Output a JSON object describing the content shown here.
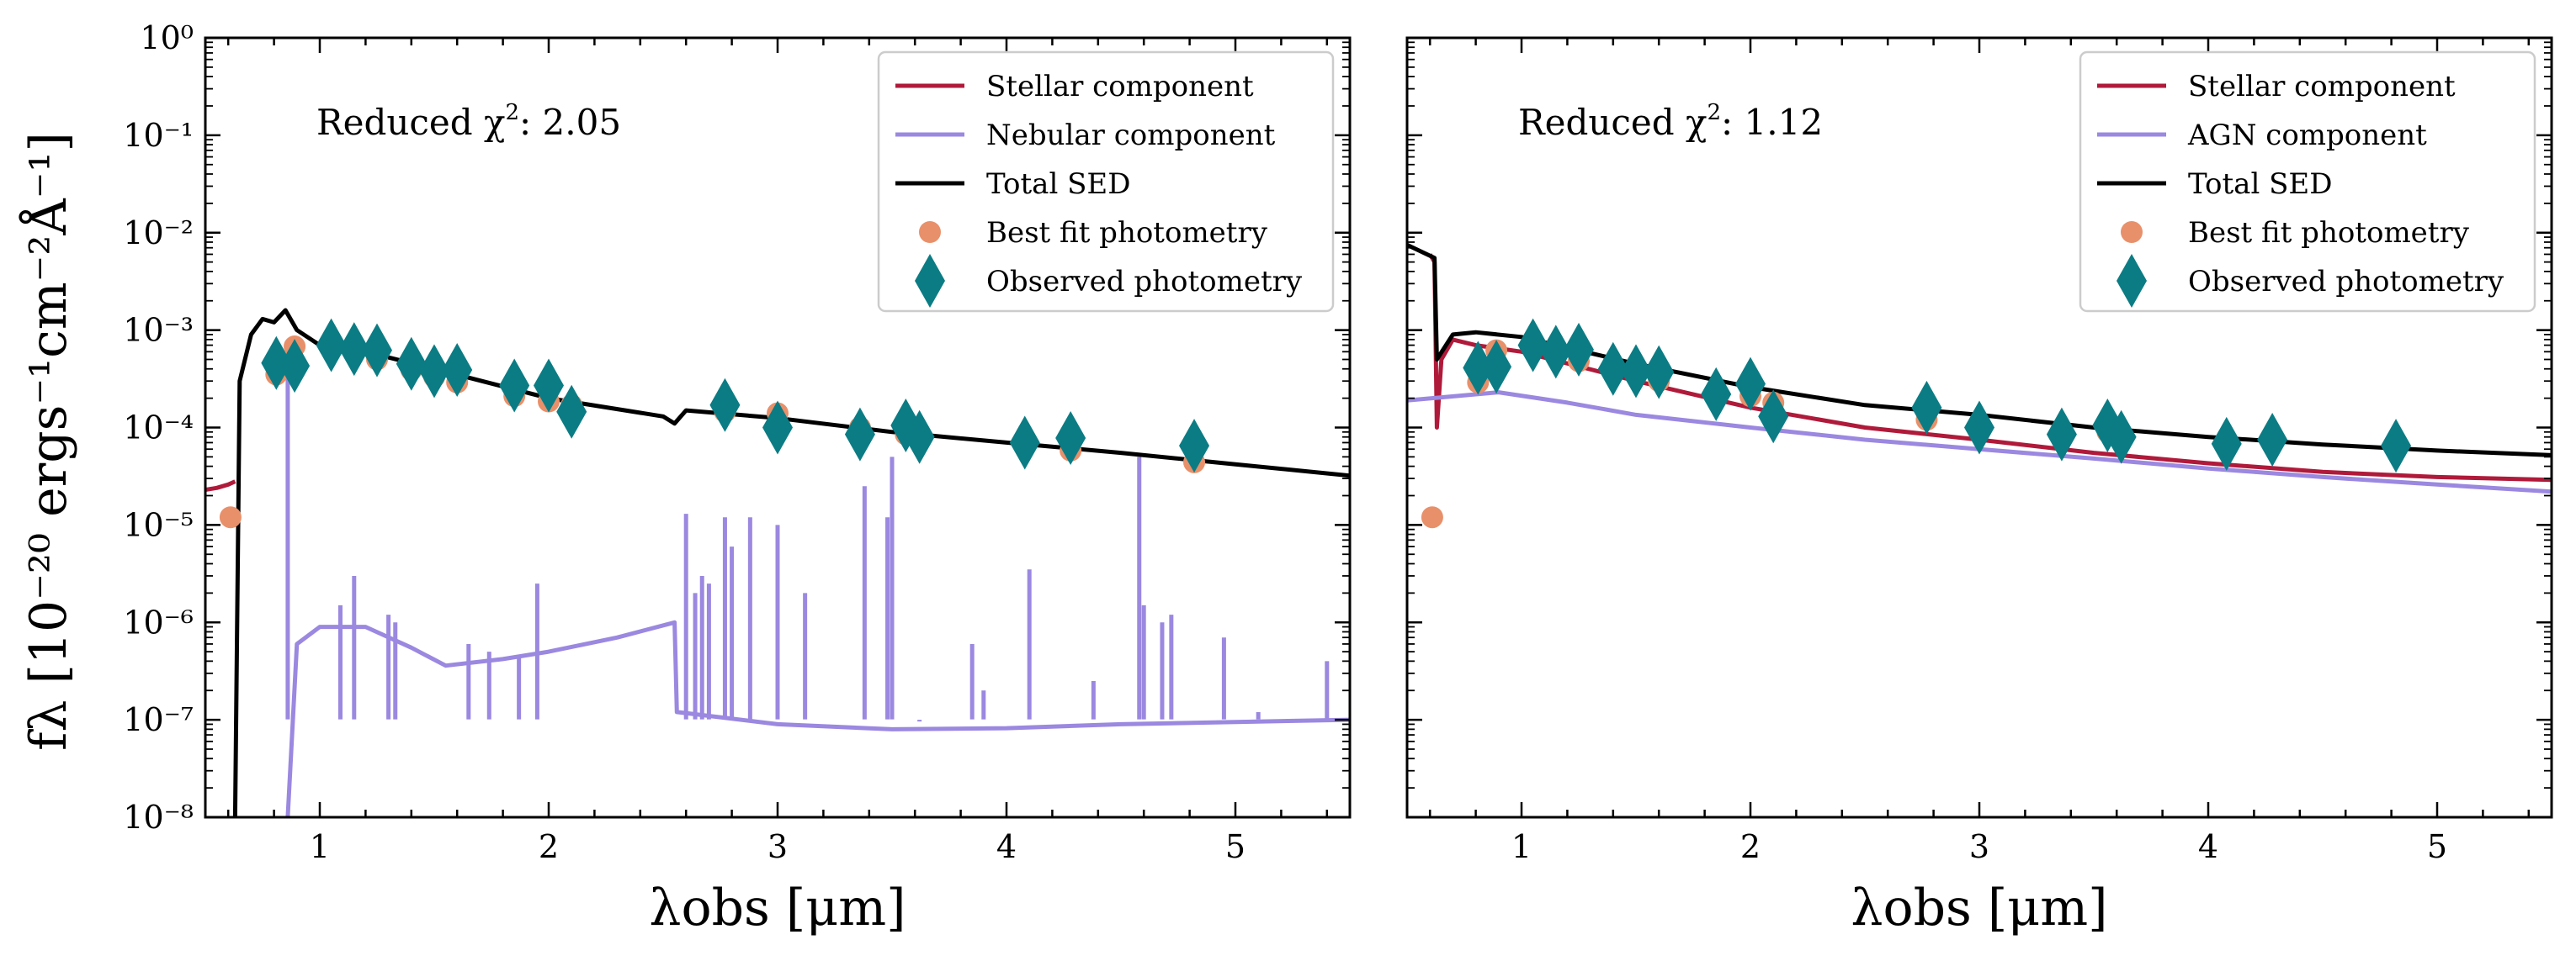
{
  "figure": {
    "ylabel": "fλ [10⁻²⁰ ergs⁻¹cm⁻²Å⁻¹]",
    "colors": {
      "stellar": "#b01a3a",
      "nebular": "#9b88e0",
      "agn": "#9b88e0",
      "total": "#000000",
      "best_fit": "#e8906a",
      "observed": "#0b7c84"
    }
  },
  "chart_data": [
    {
      "type": "line",
      "title": "",
      "xlabel": "λobs [μm]",
      "ylabel": "fλ [10⁻²⁰ ergs⁻¹cm⁻²Å⁻¹]",
      "xlim": [
        0.5,
        5.5
      ],
      "ylim_log10": [
        -8,
        0
      ],
      "yscale": "log",
      "x_ticks": [
        1,
        2,
        3,
        4,
        5
      ],
      "x_tick_labels": [
        "1",
        "2",
        "3",
        "4",
        "5"
      ],
      "y_ticks_log10": [
        -8,
        -7,
        -6,
        -5,
        -4,
        -3,
        -2,
        -1,
        0
      ],
      "y_tick_labels": [
        "10⁻⁸",
        "10⁻⁷",
        "10⁻⁶",
        "10⁻⁵",
        "10⁻⁴",
        "10⁻³",
        "10⁻²",
        "10⁻¹",
        "10⁰"
      ],
      "annotation": {
        "prefix": "Reduced χ",
        "power": "2",
        "value": ": 2.05"
      },
      "legend": [
        "Stellar component",
        "Nebular component",
        "Total SED",
        "Best fit photometry",
        "Observed photometry"
      ],
      "legend_position": "top-right",
      "series": [
        {
          "name": "Stellar component",
          "key": "stellar",
          "points": [
            [
              0.5,
              2.3e-05
            ],
            [
              0.55,
              2.4e-05
            ],
            [
              0.6,
              2.6e-05
            ],
            [
              0.63,
              2.8e-05
            ]
          ]
        },
        {
          "name": "Total SED",
          "key": "total",
          "points": [
            [
              0.63,
              1e-08
            ],
            [
              0.65,
              0.0003
            ],
            [
              0.7,
              0.0009
            ],
            [
              0.75,
              0.0013
            ],
            [
              0.8,
              0.0012
            ],
            [
              0.85,
              0.0016
            ],
            [
              0.9,
              0.001
            ],
            [
              1.0,
              0.0007
            ],
            [
              1.2,
              0.0006
            ],
            [
              1.5,
              0.0004
            ],
            [
              2.0,
              0.0002
            ],
            [
              2.5,
              0.00013
            ],
            [
              2.55,
              0.00011
            ],
            [
              2.6,
              0.00015
            ],
            [
              3.0,
              0.000125
            ],
            [
              3.5,
              9e-05
            ],
            [
              4.0,
              7e-05
            ],
            [
              4.5,
              5.5e-05
            ],
            [
              5.0,
              4.2e-05
            ],
            [
              5.5,
              3.2e-05
            ]
          ]
        },
        {
          "name": "Nebular component",
          "key": "nebular",
          "points": [
            [
              0.86,
              1e-08
            ],
            [
              0.9,
              6e-07
            ],
            [
              1.0,
              9e-07
            ],
            [
              1.2,
              9e-07
            ],
            [
              1.4,
              5.5e-07
            ],
            [
              1.55,
              3.6e-07
            ],
            [
              1.8,
              4.2e-07
            ],
            [
              2.0,
              5e-07
            ],
            [
              2.3,
              7e-07
            ],
            [
              2.55,
              1e-06
            ],
            [
              2.56,
              1.2e-07
            ],
            [
              3.0,
              9e-08
            ],
            [
              3.5,
              8e-08
            ],
            [
              4.0,
              8.2e-08
            ],
            [
              4.5,
              9e-08
            ],
            [
              5.0,
              9.5e-08
            ],
            [
              5.5,
              1e-07
            ]
          ]
        },
        {
          "name": "Nebular emission lines",
          "key": "nebular",
          "lines": [
            [
              0.86,
              0.00035
            ],
            [
              1.09,
              1.5e-06
            ],
            [
              1.15,
              3e-06
            ],
            [
              1.3,
              1.2e-06
            ],
            [
              1.33,
              1e-06
            ],
            [
              1.65,
              6e-07
            ],
            [
              1.74,
              5e-07
            ],
            [
              1.87,
              4.5e-07
            ],
            [
              1.95,
              2.5e-06
            ],
            [
              2.6,
              1.3e-05
            ],
            [
              2.64,
              2e-06
            ],
            [
              2.67,
              3e-06
            ],
            [
              2.7,
              2.5e-06
            ],
            [
              2.77,
              1.2e-05
            ],
            [
              2.8,
              6e-06
            ],
            [
              2.88,
              1.2e-05
            ],
            [
              3.0,
              1e-05
            ],
            [
              3.12,
              2e-06
            ],
            [
              3.38,
              2.5e-05
            ],
            [
              3.48,
              1.2e-05
            ],
            [
              3.5,
              5e-05
            ],
            [
              3.62,
              1e-07
            ],
            [
              3.85,
              6e-07
            ],
            [
              3.9,
              2e-07
            ],
            [
              4.1,
              3.5e-06
            ],
            [
              4.38,
              2.5e-07
            ],
            [
              4.58,
              5e-05
            ],
            [
              4.6,
              1.5e-06
            ],
            [
              4.68,
              1e-06
            ],
            [
              4.72,
              1.2e-06
            ],
            [
              4.95,
              7e-07
            ],
            [
              5.1,
              1.2e-07
            ],
            [
              5.4,
              4e-07
            ]
          ]
        }
      ],
      "best_fit_photometry": [
        [
          0.61,
          1.2e-05
        ],
        [
          0.81,
          0.00035
        ],
        [
          0.89,
          0.00068
        ],
        [
          1.05,
          0.0007
        ],
        [
          1.15,
          0.00058
        ],
        [
          1.25,
          0.0005
        ],
        [
          1.4,
          0.00039
        ],
        [
          1.5,
          0.00033
        ],
        [
          1.6,
          0.00029
        ],
        [
          1.85,
          0.00021
        ],
        [
          2.0,
          0.000185
        ],
        [
          2.1,
          0.00017
        ],
        [
          2.77,
          0.000145
        ],
        [
          3.0,
          0.00014
        ],
        [
          3.36,
          0.0001
        ],
        [
          3.56,
          8.5e-05
        ],
        [
          3.62,
          8.2e-05
        ],
        [
          4.08,
          6.5e-05
        ],
        [
          4.28,
          5.8e-05
        ],
        [
          4.82,
          4.4e-05
        ]
      ],
      "observed_photometry": [
        [
          0.81,
          0.00046
        ],
        [
          0.89,
          0.00043
        ],
        [
          1.05,
          0.0007
        ],
        [
          1.15,
          0.00064
        ],
        [
          1.25,
          0.00062
        ],
        [
          1.4,
          0.00045
        ],
        [
          1.5,
          0.00038
        ],
        [
          1.6,
          0.00039
        ],
        [
          1.85,
          0.00027
        ],
        [
          2.0,
          0.00027
        ],
        [
          2.1,
          0.000145
        ],
        [
          2.77,
          0.00017
        ],
        [
          3.0,
          0.0001
        ],
        [
          3.36,
          8.5e-05
        ],
        [
          3.56,
          0.000105
        ],
        [
          3.62,
          8e-05
        ],
        [
          4.08,
          7e-05
        ],
        [
          4.28,
          7.8e-05
        ],
        [
          4.82,
          6.5e-05
        ]
      ]
    },
    {
      "type": "line",
      "title": "",
      "xlabel": "λobs [μm]",
      "ylabel": "",
      "xlim": [
        0.5,
        5.5
      ],
      "ylim_log10": [
        -8,
        0
      ],
      "yscale": "log",
      "x_ticks": [
        1,
        2,
        3,
        4,
        5
      ],
      "x_tick_labels": [
        "1",
        "2",
        "3",
        "4",
        "5"
      ],
      "annotation": {
        "prefix": "Reduced χ",
        "power": "2",
        "value": ": 1.12"
      },
      "legend": [
        "Stellar component",
        "AGN component",
        "Total SED",
        "Best fit photometry",
        "Observed photometry"
      ],
      "legend_position": "top-right",
      "series": [
        {
          "name": "Stellar component",
          "key": "stellar",
          "points": [
            [
              0.6,
              0.006
            ],
            [
              0.62,
              0.005
            ],
            [
              0.63,
              0.0001
            ],
            [
              0.65,
              0.0005
            ],
            [
              0.7,
              0.0008
            ],
            [
              0.8,
              0.0007
            ],
            [
              1.0,
              0.0006
            ],
            [
              1.5,
              0.0003
            ],
            [
              2.0,
              0.00016
            ],
            [
              2.5,
              0.0001
            ],
            [
              3.0,
              7.5e-05
            ],
            [
              3.5,
              5.5e-05
            ],
            [
              4.0,
              4.3e-05
            ],
            [
              4.5,
              3.5e-05
            ],
            [
              5.0,
              3.1e-05
            ],
            [
              5.5,
              2.9e-05
            ]
          ]
        },
        {
          "name": "AGN component",
          "key": "agn",
          "points": [
            [
              0.5,
              0.00019
            ],
            [
              0.9,
              0.00023
            ],
            [
              1.2,
              0.00018
            ],
            [
              1.5,
              0.000135
            ],
            [
              2.0,
              0.0001
            ],
            [
              2.5,
              7.5e-05
            ],
            [
              3.0,
              6e-05
            ],
            [
              3.5,
              4.8e-05
            ],
            [
              4.0,
              3.8e-05
            ],
            [
              4.5,
              3.1e-05
            ],
            [
              5.0,
              2.6e-05
            ],
            [
              5.5,
              2.2e-05
            ]
          ]
        },
        {
          "name": "Total SED",
          "key": "total",
          "points": [
            [
              0.5,
              0.0075
            ],
            [
              0.62,
              0.0055
            ],
            [
              0.63,
              0.0005
            ],
            [
              0.7,
              0.0009
            ],
            [
              0.8,
              0.00095
            ],
            [
              1.0,
              0.00085
            ],
            [
              1.5,
              0.00045
            ],
            [
              2.0,
              0.00026
            ],
            [
              2.5,
              0.00017
            ],
            [
              3.0,
              0.000135
            ],
            [
              3.5,
              0.0001
            ],
            [
              4.0,
              8e-05
            ],
            [
              4.5,
              6.7e-05
            ],
            [
              5.0,
              5.8e-05
            ],
            [
              5.5,
              5.2e-05
            ]
          ]
        }
      ],
      "best_fit_photometry": [
        [
          0.61,
          1.2e-05
        ],
        [
          0.81,
          0.00029
        ],
        [
          0.89,
          0.00062
        ],
        [
          1.05,
          0.00063
        ],
        [
          1.15,
          0.00056
        ],
        [
          1.25,
          0.00048
        ],
        [
          1.4,
          0.00038
        ],
        [
          1.5,
          0.00034
        ],
        [
          1.6,
          0.0003
        ],
        [
          1.85,
          0.00023
        ],
        [
          2.0,
          0.00021
        ],
        [
          2.1,
          0.00018
        ],
        [
          2.77,
          0.00012
        ],
        [
          3.0,
          0.000105
        ],
        [
          3.36,
          9.5e-05
        ],
        [
          3.56,
          9e-05
        ],
        [
          3.62,
          8.8e-05
        ],
        [
          4.08,
          7.3e-05
        ],
        [
          4.28,
          7e-05
        ],
        [
          4.82,
          6.2e-05
        ]
      ],
      "observed_photometry": [
        [
          0.81,
          0.00041
        ],
        [
          0.89,
          0.00042
        ],
        [
          1.05,
          0.0007
        ],
        [
          1.15,
          0.0006
        ],
        [
          1.25,
          0.00063
        ],
        [
          1.4,
          0.0004
        ],
        [
          1.5,
          0.00038
        ],
        [
          1.6,
          0.00037
        ],
        [
          1.85,
          0.00022
        ],
        [
          2.0,
          0.00028
        ],
        [
          2.1,
          0.00013
        ],
        [
          2.77,
          0.00016
        ],
        [
          3.0,
          0.0001
        ],
        [
          3.36,
          8.5e-05
        ],
        [
          3.56,
          0.000105
        ],
        [
          3.62,
          8e-05
        ],
        [
          4.08,
          6.8e-05
        ],
        [
          4.28,
          7.5e-05
        ],
        [
          4.82,
          6.5e-05
        ]
      ]
    }
  ]
}
